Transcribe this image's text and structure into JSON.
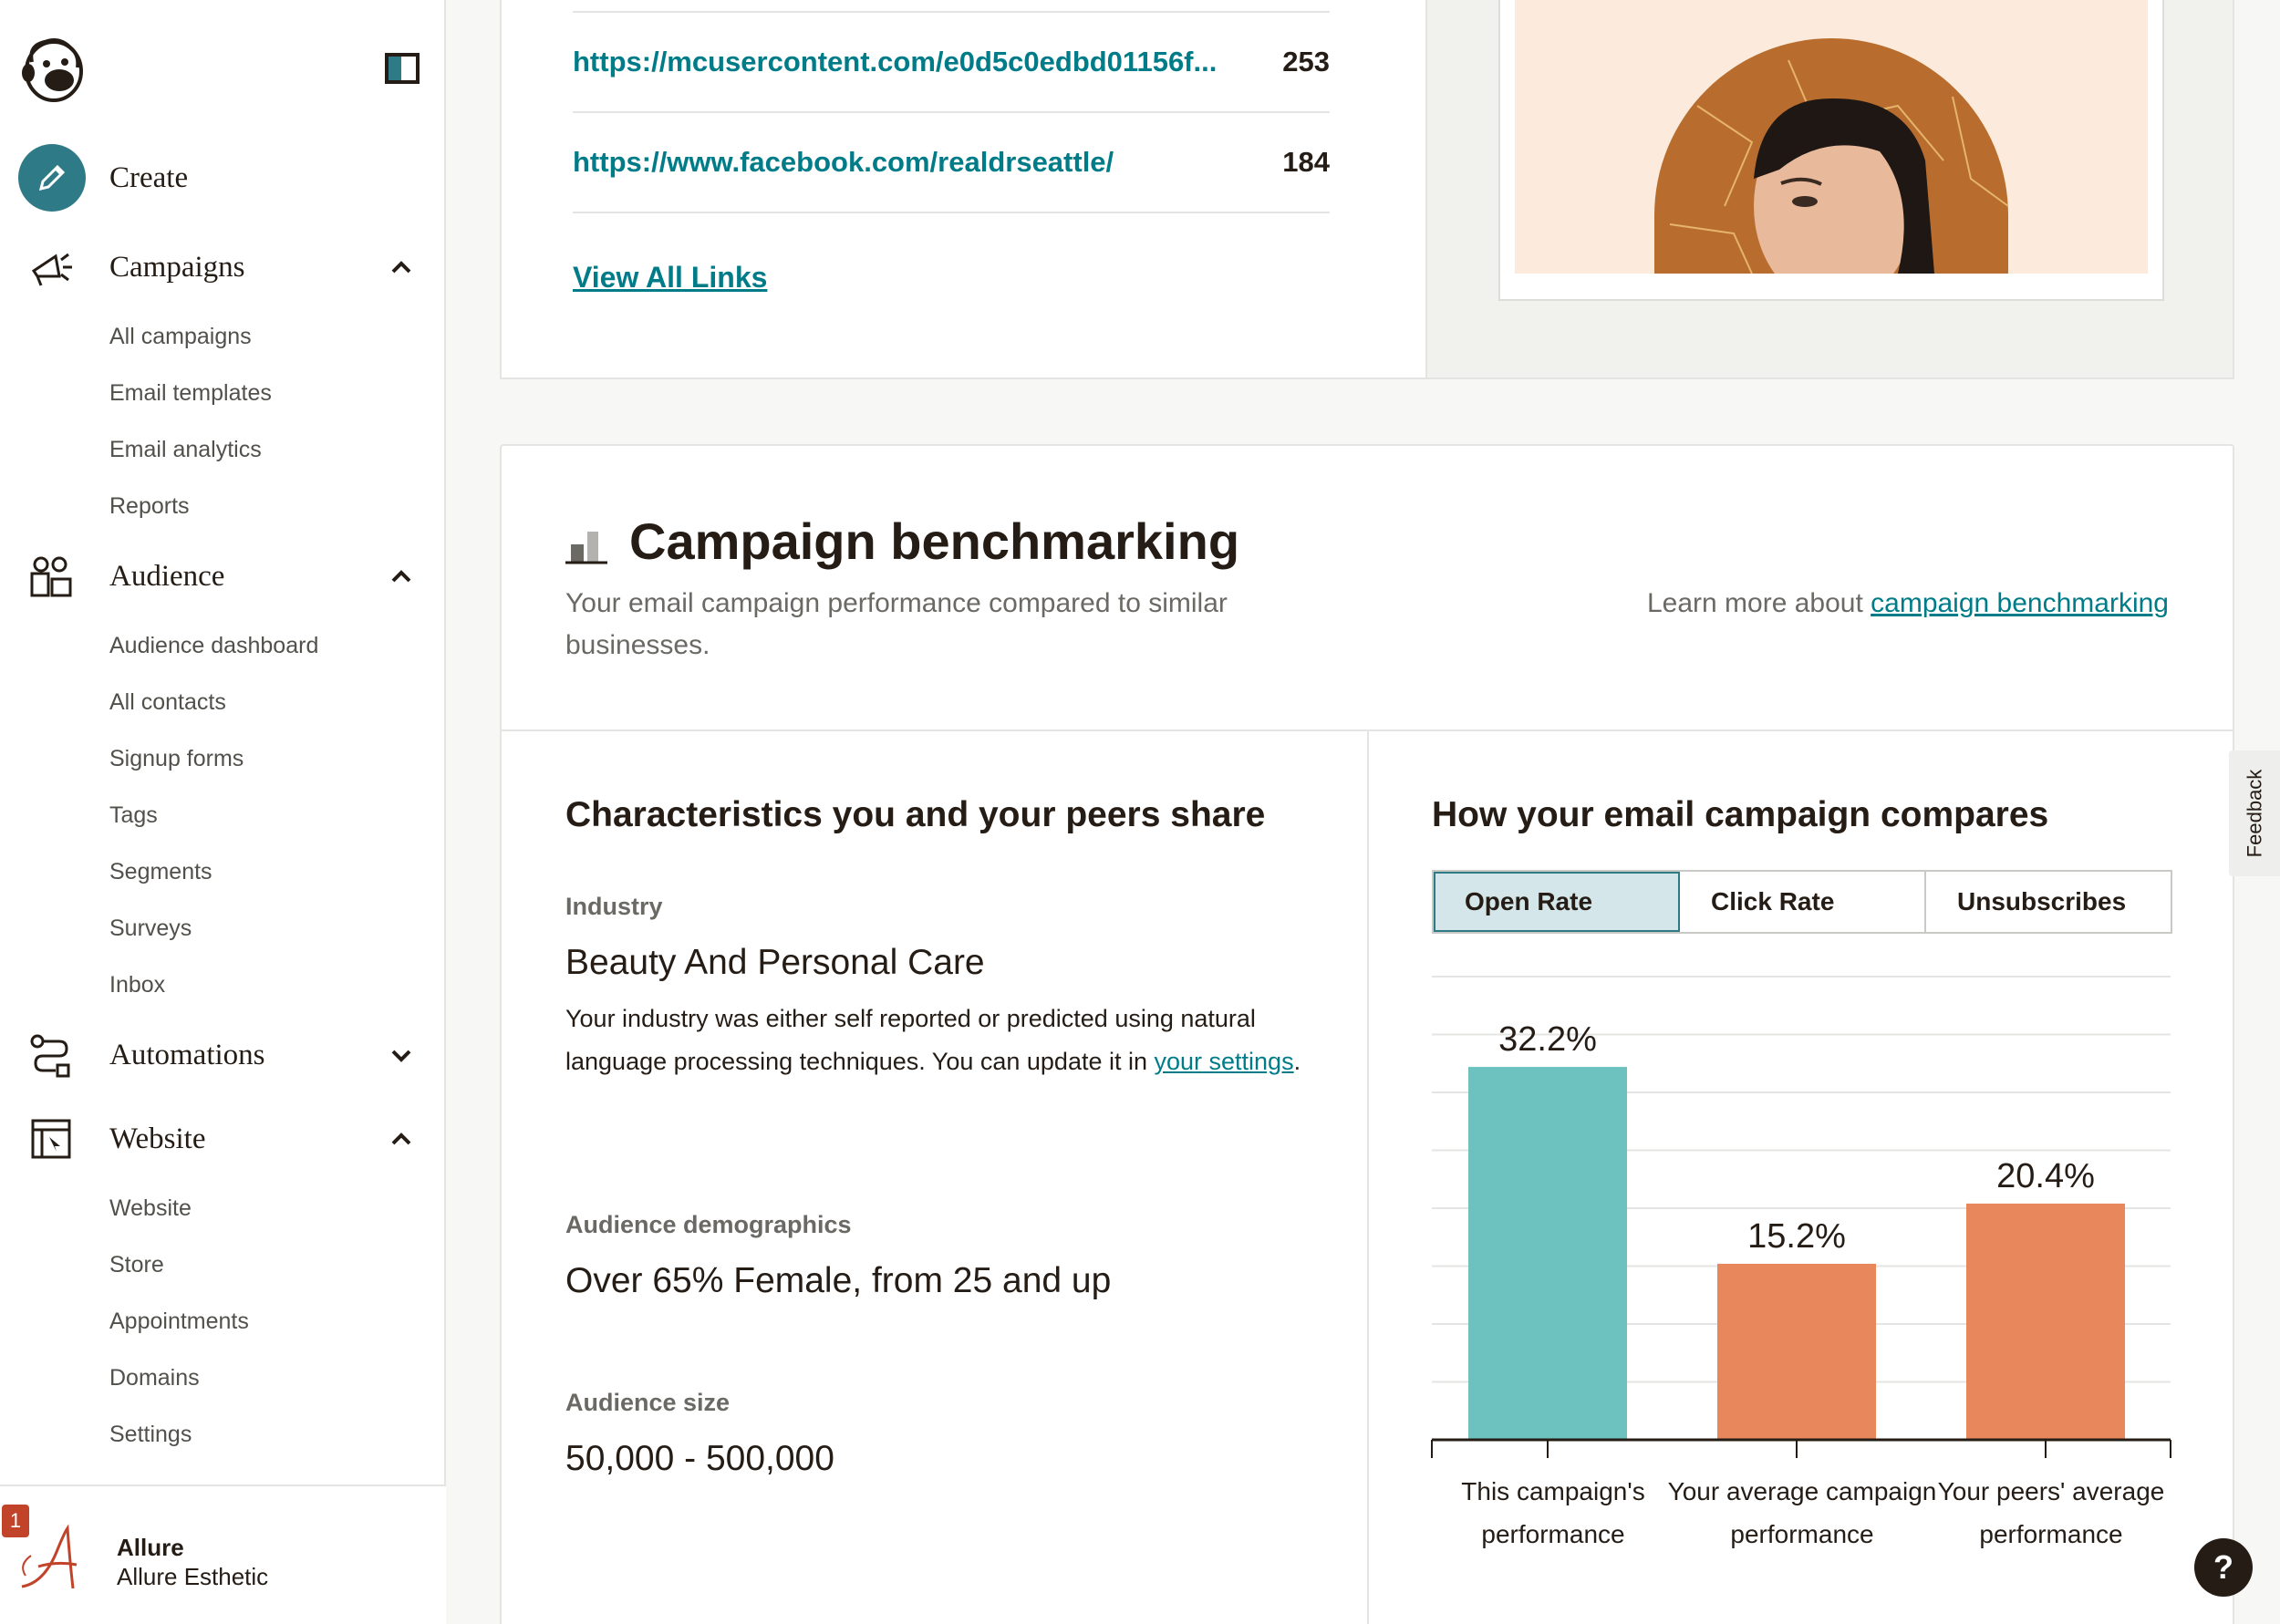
{
  "sidebar": {
    "create_label": "Create",
    "sections": [
      {
        "label": "Campaigns",
        "items": [
          "All campaigns",
          "Email templates",
          "Email analytics",
          "Reports"
        ]
      },
      {
        "label": "Audience",
        "items": [
          "Audience dashboard",
          "All contacts",
          "Signup forms",
          "Tags",
          "Segments",
          "Surveys",
          "Inbox"
        ]
      },
      {
        "label": "Automations",
        "items": []
      },
      {
        "label": "Website",
        "items": [
          "Website",
          "Store",
          "Appointments",
          "Domains",
          "Settings"
        ]
      }
    ],
    "account": {
      "badge": "1",
      "name": "Allure",
      "org": "Allure Esthetic"
    }
  },
  "links": {
    "rows": [
      {
        "url": "https://mcusercontent.com/e0d5c0edbd01156f...",
        "count": "253"
      },
      {
        "url": "https://www.facebook.com/realdrseattle/",
        "count": "184"
      }
    ],
    "view_all": "View All Links"
  },
  "benchmark": {
    "title": "Campaign benchmarking",
    "subtitle": "Your email campaign performance compared to similar businesses.",
    "learn_more_prefix": "Learn more about ",
    "learn_more_link": "campaign benchmarking",
    "left": {
      "heading": "Characteristics you and your peers share",
      "industry_label": "Industry",
      "industry_value": "Beauty And Personal Care",
      "industry_desc": "Your industry was either self reported or predicted using natural language processing techniques. You can update it in ",
      "industry_link": "your settings",
      "industry_desc_end": ".",
      "demographics_label": "Audience demographics",
      "demographics_value": "Over 65% Female, from 25 and up",
      "size_label": "Audience size",
      "size_value": "50,000 - 500,000"
    },
    "right": {
      "heading": "How your email campaign compares",
      "tabs": [
        "Open Rate",
        "Click Rate",
        "Unsubscribes"
      ],
      "active_tab": 0
    }
  },
  "chart_data": {
    "type": "bar",
    "categories": [
      "This campaign's performance",
      "Your average campaign performance",
      "Your peers' average performance"
    ],
    "category_lines": [
      [
        "This campaign's",
        "performance"
      ],
      [
        "Your average campaign",
        "performance"
      ],
      [
        "Your peers' average",
        "performance"
      ]
    ],
    "values": [
      32.2,
      15.2,
      20.4
    ],
    "value_labels": [
      "32.2%",
      "15.2%",
      "20.4%"
    ],
    "colors": [
      "#6dc2c0",
      "#e8875c",
      "#e8875c"
    ],
    "ylim": [
      0,
      40
    ],
    "grid": true
  },
  "ui": {
    "feedback": "Feedback",
    "help": "?"
  }
}
